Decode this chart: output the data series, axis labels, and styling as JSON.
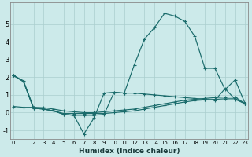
{
  "xlabel": "Humidex (Indice chaleur)",
  "background_color": "#cceaea",
  "grid_color": "#aacece",
  "line_color": "#1a6b6b",
  "x_ticks": [
    0,
    1,
    2,
    3,
    4,
    5,
    6,
    7,
    8,
    9,
    10,
    11,
    12,
    13,
    14,
    15,
    16,
    17,
    18,
    19,
    20,
    21,
    22,
    23
  ],
  "ylim": [
    -1.5,
    6.2
  ],
  "xlim": [
    -0.3,
    23.3
  ],
  "yticks": [
    -1,
    0,
    1,
    2,
    3,
    4,
    5
  ],
  "series1_x": [
    0,
    1,
    2,
    3,
    4,
    5,
    6,
    7,
    8,
    9,
    10,
    11,
    12,
    13,
    14,
    15,
    16,
    17,
    18,
    19,
    20,
    21,
    22,
    23
  ],
  "series1_y": [
    2.1,
    1.8,
    0.3,
    0.2,
    0.1,
    -0.1,
    -0.15,
    -0.15,
    -0.15,
    -0.1,
    1.15,
    1.1,
    2.7,
    4.15,
    4.8,
    5.6,
    5.45,
    5.15,
    4.3,
    2.5,
    2.5,
    1.3,
    1.85,
    0.5
  ],
  "series2_x": [
    0,
    1,
    2,
    3,
    4,
    5,
    6,
    7,
    8,
    9,
    10,
    11,
    12,
    13,
    14,
    15,
    16,
    17,
    18,
    19,
    20,
    21,
    22,
    23
  ],
  "series2_y": [
    2.1,
    1.75,
    0.25,
    0.2,
    0.1,
    -0.1,
    -0.15,
    -1.2,
    -0.3,
    1.1,
    1.15,
    1.1,
    1.1,
    1.05,
    1.0,
    0.95,
    0.9,
    0.85,
    0.8,
    0.75,
    0.7,
    1.35,
    0.75,
    0.5
  ],
  "series3_x": [
    0,
    1,
    2,
    3,
    4,
    5,
    6,
    7,
    8,
    9,
    10,
    11,
    12,
    13,
    14,
    15,
    16,
    17,
    18,
    19,
    20,
    21,
    22,
    23
  ],
  "series3_y": [
    0.35,
    0.3,
    0.3,
    0.28,
    0.2,
    0.1,
    0.05,
    0.0,
    0.0,
    0.05,
    0.1,
    0.15,
    0.2,
    0.3,
    0.4,
    0.5,
    0.6,
    0.7,
    0.75,
    0.8,
    0.85,
    0.88,
    0.88,
    0.5
  ],
  "series4_x": [
    0,
    1,
    2,
    3,
    4,
    5,
    6,
    7,
    8,
    9,
    10,
    11,
    12,
    13,
    14,
    15,
    16,
    17,
    18,
    19,
    20,
    21,
    22,
    23
  ],
  "series4_y": [
    2.1,
    1.75,
    0.25,
    0.2,
    0.1,
    -0.05,
    -0.05,
    -0.05,
    -0.05,
    -0.05,
    0.0,
    0.05,
    0.1,
    0.2,
    0.3,
    0.4,
    0.5,
    0.6,
    0.68,
    0.72,
    0.75,
    0.78,
    0.78,
    0.5
  ]
}
